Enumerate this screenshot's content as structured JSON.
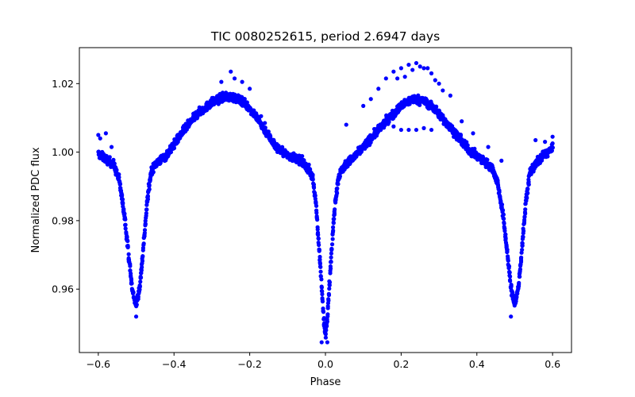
{
  "chart_data": {
    "type": "scatter",
    "title": "TIC 0080252615, period 2.6947 days",
    "xlabel": "Phase",
    "ylabel": "Normalized PDC flux",
    "xlim": [
      -0.65,
      0.65
    ],
    "ylim": [
      0.9415,
      1.0305
    ],
    "x_ticks": [
      "−0.6",
      "−0.4",
      "−0.2",
      "0.0",
      "0.2",
      "0.4",
      "0.6"
    ],
    "x_tick_values": [
      -0.6,
      -0.4,
      -0.2,
      0.0,
      0.2,
      0.4,
      0.6
    ],
    "y_ticks": [
      "0.96",
      "0.98",
      "1.00",
      "1.02"
    ],
    "y_tick_values": [
      0.96,
      0.98,
      1.0,
      1.02
    ],
    "grid": false,
    "series": [
      {
        "color": "#0000ff",
        "marker": "circle",
        "profile_x": [
          -0.6,
          -0.58,
          -0.56,
          -0.545,
          -0.53,
          -0.52,
          -0.51,
          -0.5,
          -0.49,
          -0.48,
          -0.47,
          -0.46,
          -0.45,
          -0.42,
          -0.38,
          -0.34,
          -0.3,
          -0.27,
          -0.25,
          -0.22,
          -0.19,
          -0.16,
          -0.13,
          -0.1,
          -0.07,
          -0.05,
          -0.035,
          -0.025,
          -0.015,
          -0.005,
          0.0,
          0.005,
          0.015,
          0.025,
          0.035,
          0.05,
          0.08,
          0.12,
          0.16,
          0.2,
          0.23,
          0.26,
          0.29,
          0.32,
          0.35,
          0.38,
          0.41,
          0.44,
          0.455,
          0.47,
          0.48,
          0.49,
          0.5,
          0.51,
          0.52,
          0.53,
          0.54,
          0.555,
          0.575,
          0.6
        ],
        "profile_y": [
          0.9995,
          0.998,
          0.9965,
          0.992,
          0.981,
          0.97,
          0.9595,
          0.9555,
          0.961,
          0.9735,
          0.9865,
          0.9945,
          0.9965,
          0.999,
          1.0055,
          1.011,
          1.0145,
          1.016,
          1.0162,
          1.015,
          1.0115,
          1.0065,
          1.0015,
          0.999,
          0.998,
          0.996,
          0.993,
          0.985,
          0.969,
          0.952,
          0.9465,
          0.952,
          0.969,
          0.985,
          0.993,
          0.996,
          0.999,
          1.004,
          1.009,
          1.0135,
          1.0155,
          1.015,
          1.0125,
          1.0085,
          1.0045,
          1.0005,
          0.998,
          0.9955,
          0.991,
          0.981,
          0.971,
          0.9605,
          0.9555,
          0.9605,
          0.973,
          0.986,
          0.994,
          0.9965,
          0.999,
          1.001
        ],
        "outliers": [
          [
            -0.6,
            1.005
          ],
          [
            -0.595,
            1.004
          ],
          [
            -0.58,
            1.0055
          ],
          [
            -0.565,
            1.0015
          ],
          [
            -0.25,
            1.0235
          ],
          [
            -0.275,
            1.0205
          ],
          [
            -0.24,
            1.0215
          ],
          [
            -0.22,
            1.0205
          ],
          [
            -0.2,
            1.0185
          ],
          [
            -0.17,
            1.0105
          ],
          [
            -0.16,
            1.0085
          ],
          [
            0.055,
            1.008
          ],
          [
            0.1,
            1.0135
          ],
          [
            0.12,
            1.0155
          ],
          [
            0.14,
            1.0185
          ],
          [
            0.16,
            1.0215
          ],
          [
            0.18,
            1.0235
          ],
          [
            0.19,
            1.0215
          ],
          [
            0.2,
            1.0245
          ],
          [
            0.21,
            1.022
          ],
          [
            0.22,
            1.0255
          ],
          [
            0.23,
            1.024
          ],
          [
            0.24,
            1.026
          ],
          [
            0.25,
            1.025
          ],
          [
            0.26,
            1.0245
          ],
          [
            0.27,
            1.0245
          ],
          [
            0.28,
            1.023
          ],
          [
            0.29,
            1.021
          ],
          [
            0.3,
            1.02
          ],
          [
            0.31,
            1.018
          ],
          [
            0.33,
            1.0165
          ],
          [
            0.18,
            1.0075
          ],
          [
            0.2,
            1.0065
          ],
          [
            0.22,
            1.0065
          ],
          [
            0.24,
            1.0065
          ],
          [
            0.26,
            1.007
          ],
          [
            0.28,
            1.0065
          ],
          [
            0.36,
            1.009
          ],
          [
            0.39,
            1.0055
          ],
          [
            0.43,
            1.0015
          ],
          [
            0.465,
            0.9975
          ],
          [
            0.6,
            1.0045
          ],
          [
            0.58,
            1.003
          ],
          [
            0.555,
            1.0035
          ],
          [
            -0.01,
            0.9445
          ],
          [
            0.005,
            0.9445
          ],
          [
            -0.5,
            0.952
          ],
          [
            0.49,
            0.952
          ]
        ]
      }
    ]
  }
}
